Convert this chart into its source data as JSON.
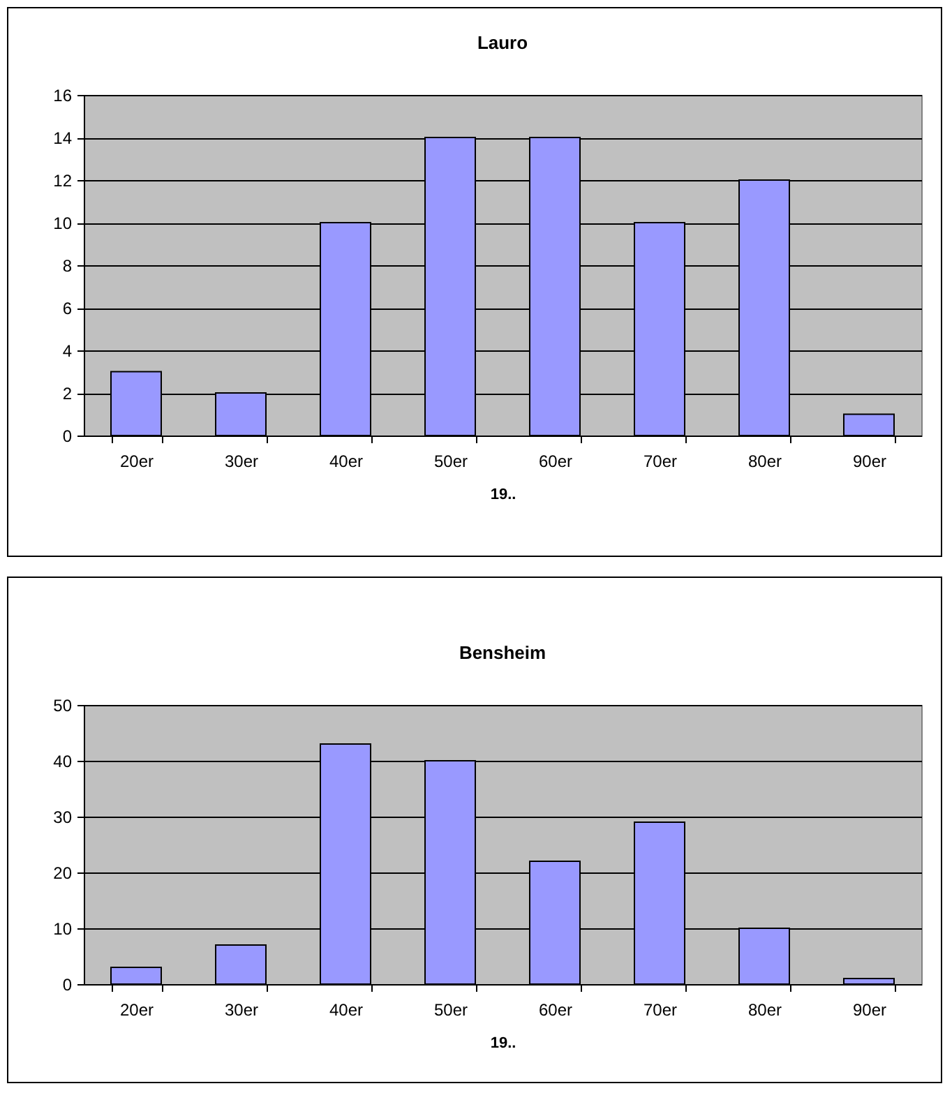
{
  "chart_data": [
    {
      "type": "bar",
      "title": "Lauro",
      "xlabel": "19..",
      "categories": [
        "20er",
        "30er",
        "40er",
        "50er",
        "60er",
        "70er",
        "80er",
        "90er"
      ],
      "values": [
        3,
        2,
        10,
        14,
        14,
        10,
        12,
        1
      ],
      "color": "#9999ff",
      "ylim": [
        0,
        16
      ],
      "yticks": [
        0,
        2,
        4,
        6,
        8,
        10,
        12,
        14,
        16
      ],
      "grid": "y"
    },
    {
      "type": "bar",
      "title": "Bensheim",
      "xlabel": "19..",
      "categories": [
        "20er",
        "30er",
        "40er",
        "50er",
        "60er",
        "70er",
        "80er",
        "90er"
      ],
      "values": [
        3,
        7,
        43,
        40,
        22,
        29,
        10,
        1
      ],
      "color": "#9999ff",
      "ylim": [
        0,
        50
      ],
      "yticks": [
        0,
        10,
        20,
        30,
        40,
        50
      ],
      "grid": "y"
    }
  ]
}
